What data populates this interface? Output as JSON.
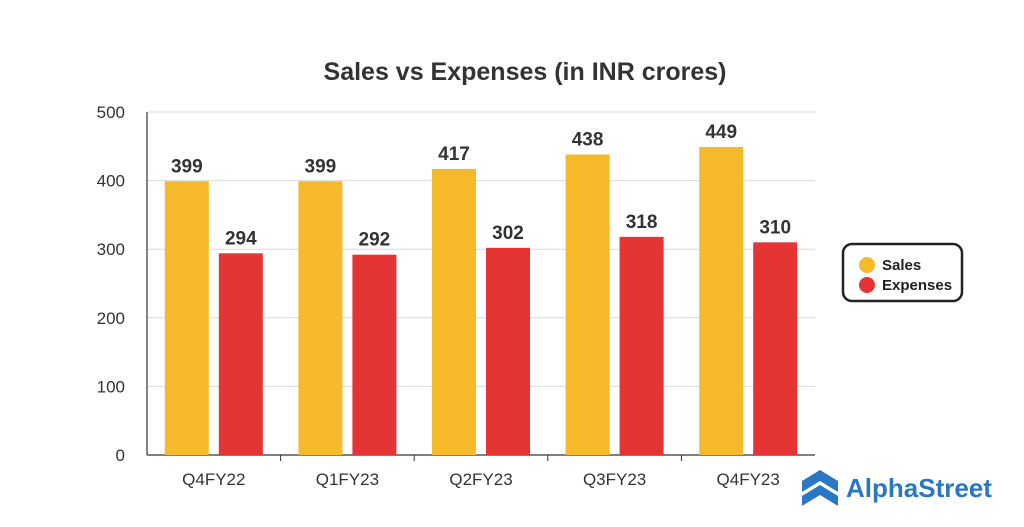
{
  "chart_data": {
    "type": "bar",
    "title": "Sales vs Expenses (in INR crores)",
    "categories": [
      "Q4FY22",
      "Q1FY23",
      "Q2FY23",
      "Q3FY23",
      "Q4FY23"
    ],
    "series": [
      {
        "name": "Sales",
        "values": [
          399,
          399,
          417,
          438,
          449
        ],
        "color": "#f6b92b"
      },
      {
        "name": "Expenses",
        "values": [
          294,
          292,
          302,
          318,
          310
        ],
        "color": "#e43434"
      }
    ],
    "ylim": [
      0,
      500
    ],
    "yticks": [
      0,
      100,
      200,
      300,
      400,
      500
    ],
    "grid": true,
    "legend_position": "right"
  },
  "brand": {
    "name": "AlphaStreet",
    "icon": "alphastreet-logo-icon",
    "color": "#2a78c4"
  }
}
